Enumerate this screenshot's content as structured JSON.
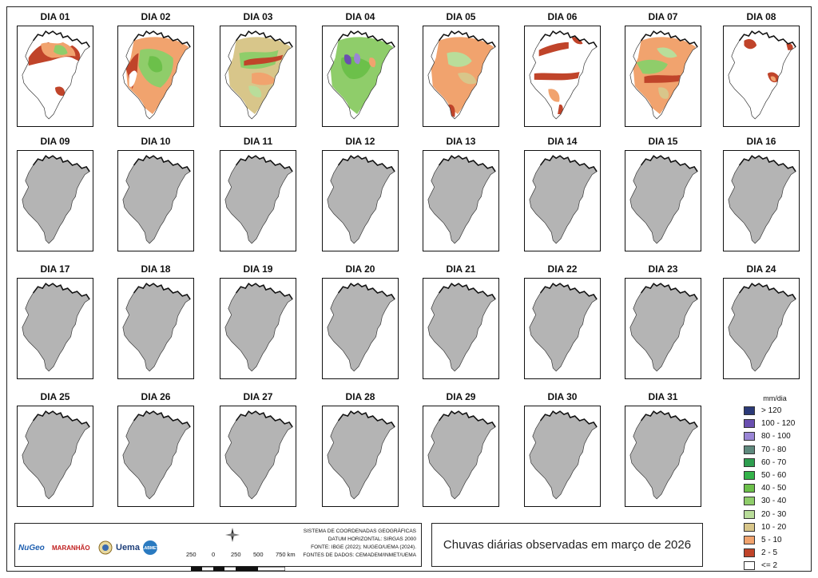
{
  "days": [
    {
      "label": "DIA 01",
      "state": "data",
      "fills": [
        [
          "#c14a2a",
          null
        ],
        [
          "#f0a06a",
          null
        ],
        [
          "#8dc96a",
          null
        ],
        [
          "#c8a06a",
          null
        ],
        [
          "#ffffff",
          null
        ]
      ]
    },
    {
      "label": "DIA 02",
      "state": "data"
    },
    {
      "label": "DIA 03",
      "state": "data"
    },
    {
      "label": "DIA 04",
      "state": "data"
    },
    {
      "label": "DIA 05",
      "state": "data"
    },
    {
      "label": "DIA 06",
      "state": "data"
    },
    {
      "label": "DIA 07",
      "state": "data"
    },
    {
      "label": "DIA 08",
      "state": "data"
    },
    {
      "label": "DIA 09",
      "state": "empty"
    },
    {
      "label": "DIA 10",
      "state": "empty"
    },
    {
      "label": "DIA 11",
      "state": "empty"
    },
    {
      "label": "DIA 12",
      "state": "empty"
    },
    {
      "label": "DIA 13",
      "state": "empty"
    },
    {
      "label": "DIA 14",
      "state": "empty"
    },
    {
      "label": "DIA 15",
      "state": "empty"
    },
    {
      "label": "DIA 16",
      "state": "empty"
    },
    {
      "label": "DIA 17",
      "state": "empty"
    },
    {
      "label": "DIA 18",
      "state": "empty"
    },
    {
      "label": "DIA 19",
      "state": "empty"
    },
    {
      "label": "DIA 20",
      "state": "empty"
    },
    {
      "label": "DIA 21",
      "state": "empty"
    },
    {
      "label": "DIA 22",
      "state": "empty"
    },
    {
      "label": "DIA 23",
      "state": "empty"
    },
    {
      "label": "DIA 24",
      "state": "empty"
    },
    {
      "label": "DIA 25",
      "state": "empty"
    },
    {
      "label": "DIA 26",
      "state": "empty"
    },
    {
      "label": "DIA 27",
      "state": "empty"
    },
    {
      "label": "DIA 28",
      "state": "empty"
    },
    {
      "label": "DIA 29",
      "state": "empty"
    },
    {
      "label": "DIA 30",
      "state": "empty"
    },
    {
      "label": "DIA 31",
      "state": "empty"
    }
  ],
  "legend": {
    "title": "mm/dia",
    "items": [
      {
        "label": "> 120",
        "color": "#2b3a78"
      },
      {
        "label": "100 - 120",
        "color": "#6a4fb0"
      },
      {
        "label": "80 - 100",
        "color": "#9a86d6"
      },
      {
        "label": "70 - 80",
        "color": "#5f8a7e"
      },
      {
        "label": "60 - 70",
        "color": "#2e9e4f"
      },
      {
        "label": "50 - 60",
        "color": "#34b34a"
      },
      {
        "label": "40 - 50",
        "color": "#6cc04a"
      },
      {
        "label": "30 - 40",
        "color": "#8fcd6a"
      },
      {
        "label": "20 - 30",
        "color": "#b9dd9a"
      },
      {
        "label": "10 - 20",
        "color": "#d8c68a"
      },
      {
        "label": "5 - 10",
        "color": "#f1a36e"
      },
      {
        "label": "2 - 5",
        "color": "#c0442a"
      },
      {
        "label": "<= 2",
        "color": "#ffffff"
      }
    ]
  },
  "map_title": "Chuvas diárias observadas em março de 2026",
  "source_lines": [
    "SISTEMA DE COORDENADAS GEOGRÁFICAS",
    "DATUM HORIZONTAL: SIRGAS 2000",
    "FONTE: IBGE (2022); NUGEO/UEMA (2024).",
    "FONTES DE DADOS: CEMADEM/INMET/UEMA"
  ],
  "scale_labels": [
    "250",
    "0",
    "250",
    "500",
    "750 km"
  ],
  "logos": [
    "NuGeo",
    "MARANHÃO",
    "Uema",
    "LABMET"
  ],
  "colors": {
    "empty_fill": "#b4b4b4",
    "outline": "#333333"
  }
}
